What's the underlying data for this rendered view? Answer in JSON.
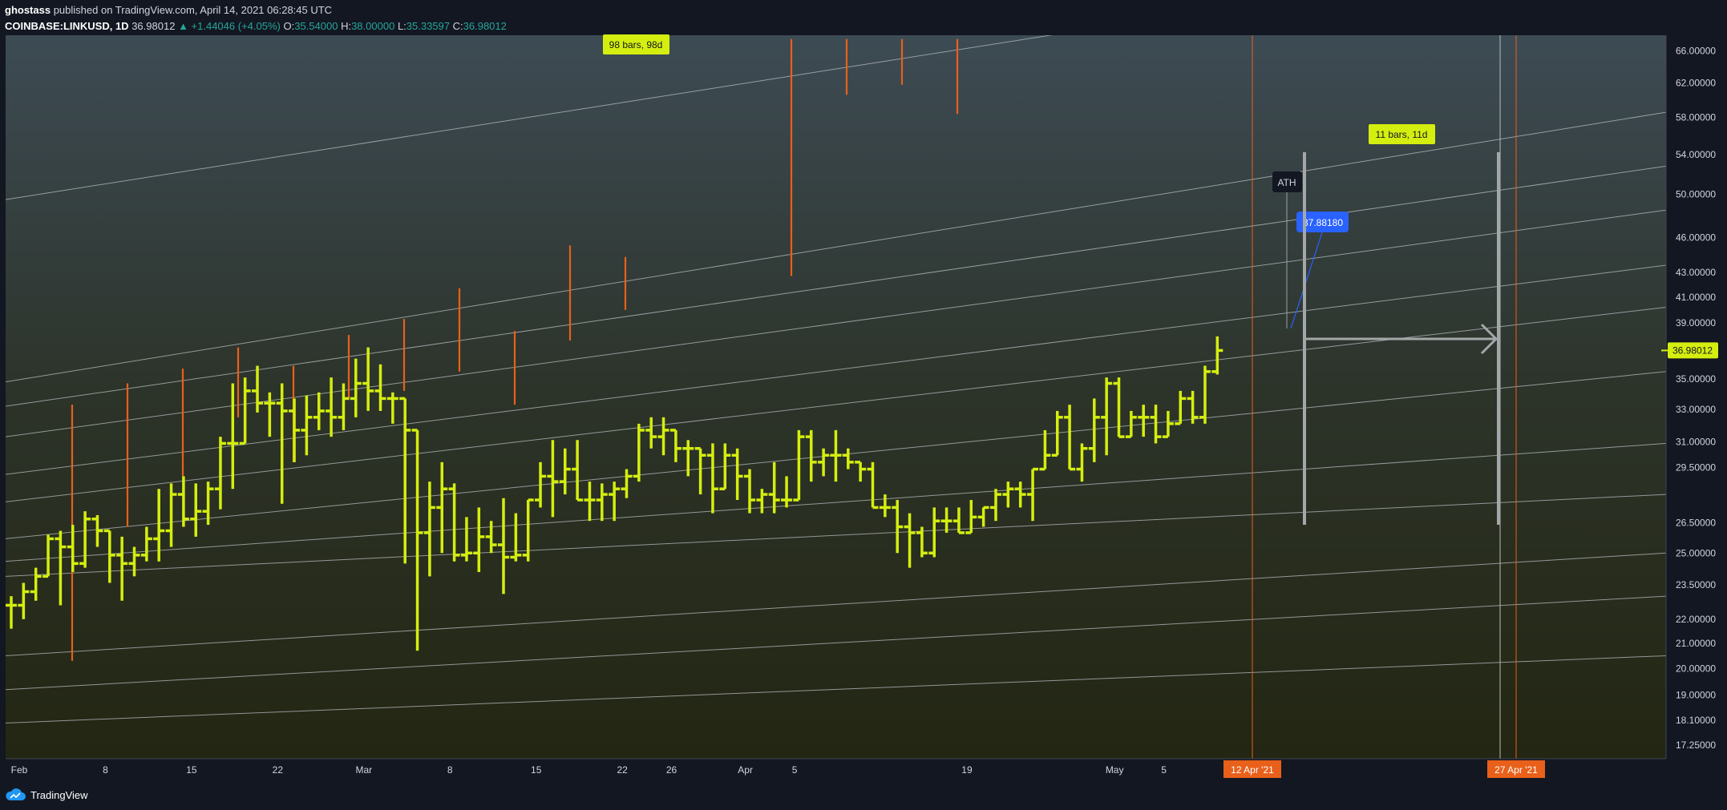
{
  "header": {
    "author": "ghostass",
    "published": "published on TradingView.com, April 14, 2021 06:28:45 UTC",
    "symbol": "COINBASE:LINKUSD, 1D",
    "last": "36.98012",
    "change": "▲ +1.44046 (+4.05%)",
    "open_label": "O:",
    "open": "35.54000",
    "high_label": "H:",
    "high": "38.00000",
    "low_label": "L:",
    "low": "35.33597",
    "close_label": "C:",
    "close": "36.98012"
  },
  "footer": {
    "brand": "TradingView",
    "icon": "tradingview-cloud-icon"
  },
  "colors": {
    "background": "#131722",
    "bar": "#d4ee0f",
    "orange": "#e8601a",
    "callout_blue": "#2962ff",
    "price_tag": "#d4ee0f"
  },
  "chart_data": {
    "type": "ohlc",
    "scale": "log",
    "ylim": [
      16.8,
      68
    ],
    "y_ticks": [
      "66.00000",
      "62.00000",
      "58.00000",
      "54.00000",
      "50.00000",
      "46.00000",
      "43.00000",
      "41.00000",
      "39.00000",
      "35.00000",
      "33.00000",
      "31.00000",
      "29.50000",
      "26.50000",
      "25.00000",
      "23.50000",
      "22.00000",
      "21.00000",
      "20.00000",
      "19.00000",
      "18.10000",
      "17.25000"
    ],
    "x_ticks": [
      {
        "label": "Feb",
        "day": 0
      },
      {
        "label": "8",
        "day": 7
      },
      {
        "label": "15",
        "day": 14
      },
      {
        "label": "22",
        "day": 21
      },
      {
        "label": "Mar",
        "day": 28
      },
      {
        "label": "8",
        "day": 35
      },
      {
        "label": "15",
        "day": 42
      },
      {
        "label": "22",
        "day": 49
      },
      {
        "label": "26",
        "day": 53
      },
      {
        "label": "Apr",
        "day": 59
      },
      {
        "label": "5",
        "day": 63
      },
      {
        "label": "19",
        "day": 77
      },
      {
        "label": "May",
        "day": 89
      },
      {
        "label": "5",
        "day": 93
      }
    ],
    "x_highlight": [
      {
        "label": "12 Apr '21",
        "day": 70
      },
      {
        "label": "27 Apr '21",
        "day": 85
      }
    ],
    "current_price": "36.98012",
    "current_value": 36.98,
    "bars": [
      [
        22.6,
        23.0,
        21.6,
        22.6
      ],
      [
        22.6,
        23.6,
        22.0,
        23.2
      ],
      [
        23.2,
        24.3,
        22.8,
        23.9
      ],
      [
        23.9,
        25.9,
        23.9,
        25.7
      ],
      [
        25.7,
        26.1,
        22.6,
        25.3
      ],
      [
        25.3,
        26.4,
        24.1,
        24.5
      ],
      [
        24.5,
        27.1,
        24.3,
        26.7
      ],
      [
        26.7,
        26.9,
        25.3,
        26.1
      ],
      [
        26.1,
        25.6,
        23.6,
        24.9
      ],
      [
        24.9,
        25.8,
        22.8,
        24.5
      ],
      [
        24.5,
        25.3,
        23.9,
        24.9
      ],
      [
        24.9,
        26.3,
        24.6,
        25.7
      ],
      [
        25.7,
        28.3,
        24.6,
        26.1
      ],
      [
        26.1,
        28.6,
        25.3,
        28.0
      ],
      [
        28.0,
        29.0,
        26.3,
        26.7
      ],
      [
        26.7,
        28.6,
        25.8,
        27.1
      ],
      [
        27.1,
        28.7,
        26.4,
        28.3
      ],
      [
        28.3,
        31.3,
        27.2,
        30.9
      ],
      [
        30.9,
        34.7,
        28.3,
        30.9
      ],
      [
        30.9,
        35.1,
        31.3,
        34.2
      ],
      [
        34.2,
        35.9,
        32.8,
        33.4
      ],
      [
        33.4,
        34.1,
        31.3,
        33.4
      ],
      [
        33.4,
        34.7,
        27.5,
        32.9
      ],
      [
        32.9,
        33.7,
        29.8,
        31.7
      ],
      [
        31.7,
        33.9,
        30.2,
        32.5
      ],
      [
        32.5,
        34.1,
        31.7,
        32.9
      ],
      [
        32.9,
        35.1,
        31.3,
        32.5
      ],
      [
        32.5,
        34.7,
        31.7,
        33.7
      ],
      [
        33.7,
        36.4,
        32.5,
        34.7
      ],
      [
        34.7,
        37.2,
        32.9,
        34.2
      ],
      [
        34.2,
        36.0,
        32.9,
        33.7
      ],
      [
        33.7,
        34.1,
        32.1,
        33.7
      ],
      [
        33.7,
        33.3,
        24.5,
        31.7
      ],
      [
        31.7,
        31.7,
        20.7,
        26.0
      ],
      [
        26.0,
        28.7,
        23.9,
        27.3
      ],
      [
        27.3,
        29.8,
        25.0,
        28.3
      ],
      [
        28.3,
        28.6,
        24.6,
        24.9
      ],
      [
        24.9,
        26.8,
        24.6,
        25.0
      ],
      [
        25.0,
        27.3,
        24.1,
        25.8
      ],
      [
        25.8,
        26.6,
        25.0,
        25.4
      ],
      [
        25.4,
        27.8,
        23.1,
        24.8
      ],
      [
        24.8,
        27.0,
        24.6,
        24.9
      ],
      [
        24.9,
        27.3,
        24.6,
        27.7
      ],
      [
        27.7,
        29.8,
        27.3,
        29.0
      ],
      [
        29.0,
        31.1,
        26.8,
        28.7
      ],
      [
        28.7,
        30.6,
        28.0,
        29.4
      ],
      [
        29.4,
        31.1,
        27.7,
        27.7
      ],
      [
        27.7,
        28.7,
        26.6,
        27.7
      ],
      [
        27.7,
        28.6,
        26.6,
        28.0
      ],
      [
        28.0,
        28.7,
        26.6,
        28.3
      ],
      [
        28.3,
        29.4,
        27.8,
        29.0
      ],
      [
        29.0,
        32.1,
        28.7,
        31.7
      ],
      [
        31.7,
        32.5,
        30.6,
        31.3
      ],
      [
        31.3,
        32.5,
        30.2,
        31.7
      ],
      [
        31.7,
        31.3,
        29.8,
        30.6
      ],
      [
        30.6,
        31.1,
        29.0,
        30.6
      ],
      [
        30.6,
        30.6,
        28.0,
        30.2
      ],
      [
        30.2,
        30.9,
        27.0,
        28.3
      ],
      [
        28.3,
        30.9,
        28.7,
        30.2
      ],
      [
        30.2,
        30.6,
        27.7,
        29.0
      ],
      [
        29.0,
        29.4,
        27.0,
        27.7
      ],
      [
        27.7,
        28.3,
        27.0,
        28.0
      ],
      [
        28.0,
        29.8,
        27.0,
        27.7
      ],
      [
        27.7,
        29.0,
        27.3,
        27.7
      ],
      [
        27.7,
        31.7,
        28.0,
        31.3
      ],
      [
        31.3,
        31.7,
        28.7,
        29.8
      ],
      [
        29.8,
        30.6,
        29.0,
        30.2
      ],
      [
        30.2,
        31.7,
        28.7,
        30.2
      ],
      [
        30.2,
        30.6,
        29.4,
        29.8
      ],
      [
        29.8,
        29.8,
        28.7,
        29.4
      ],
      [
        29.4,
        29.8,
        28.0,
        27.3
      ],
      [
        27.3,
        28.0,
        26.8,
        27.3
      ],
      [
        27.3,
        27.7,
        25.0,
        26.3
      ],
      [
        26.3,
        27.0,
        24.3,
        26.0
      ],
      [
        26.0,
        26.3,
        24.8,
        25.0
      ],
      [
        25.0,
        27.3,
        24.8,
        26.6
      ],
      [
        26.6,
        27.3,
        26.0,
        26.6
      ],
      [
        26.6,
        27.3,
        26.3,
        26.0
      ],
      [
        26.0,
        27.7,
        26.3,
        26.8
      ],
      [
        26.8,
        27.3,
        26.3,
        27.3
      ],
      [
        27.3,
        28.3,
        26.6,
        28.0
      ],
      [
        28.0,
        28.7,
        27.3,
        28.3
      ],
      [
        28.3,
        28.7,
        27.3,
        28.0
      ],
      [
        28.0,
        29.4,
        26.6,
        29.4
      ],
      [
        29.4,
        31.7,
        29.4,
        30.2
      ],
      [
        30.2,
        32.9,
        30.2,
        32.5
      ],
      [
        32.5,
        33.3,
        29.4,
        29.4
      ],
      [
        29.4,
        30.9,
        28.7,
        30.6
      ],
      [
        30.6,
        33.7,
        29.8,
        32.5
      ],
      [
        32.5,
        35.1,
        30.2,
        34.7
      ],
      [
        34.7,
        35.1,
        31.3,
        31.3
      ],
      [
        31.3,
        32.9,
        31.3,
        32.5
      ],
      [
        32.5,
        33.3,
        31.3,
        32.5
      ],
      [
        32.5,
        33.3,
        30.9,
        31.3
      ],
      [
        31.3,
        32.9,
        31.3,
        32.1
      ],
      [
        32.1,
        34.2,
        32.1,
        33.7
      ],
      [
        33.7,
        34.2,
        32.1,
        32.5
      ],
      [
        32.5,
        35.9,
        32.1,
        35.5
      ],
      [
        35.5,
        38.0,
        35.3,
        36.98
      ]
    ],
    "orange_ticks": [
      {
        "day": 8,
        "lo": 20.3,
        "hi": 33.3
      },
      {
        "day": 18,
        "lo": 26.3,
        "hi": 34.7
      },
      {
        "day": 28,
        "lo": 29.0,
        "hi": 35.7
      },
      {
        "day": 38,
        "lo": 32.5,
        "hi": 37.2
      },
      {
        "day": 48,
        "lo": 29.8,
        "hi": 35.9
      },
      {
        "day": 58,
        "lo": 33.7,
        "hi": 38.1
      },
      {
        "day": 68,
        "lo": 34.2,
        "hi": 39.3
      },
      {
        "day": 78,
        "lo": 35.5,
        "hi": 41.7
      },
      {
        "day": 88,
        "lo": 33.3,
        "hi": 38.4
      },
      {
        "day": 98,
        "lo": 37.7,
        "hi": 45.3
      },
      {
        "day": 108,
        "lo": 40.0,
        "hi": 44.3
      },
      {
        "day": 138,
        "lo": 42.7,
        "hi": 67.5
      },
      {
        "day": 148,
        "lo": 60.6,
        "hi": 67.5
      },
      {
        "day": 158,
        "lo": 61.8,
        "hi": 67.5
      },
      {
        "day": 168,
        "lo": 58.4,
        "hi": 67.5
      }
    ],
    "channel_lines": [
      {
        "y0": 49.5,
        "y1": 82.0
      },
      {
        "y0": 34.8,
        "y1": 58.6
      },
      {
        "y0": 33.2,
        "y1": 52.8
      },
      {
        "y0": 31.3,
        "y1": 48.5
      },
      {
        "y0": 29.1,
        "y1": 43.6
      },
      {
        "y0": 27.6,
        "y1": 40.2
      },
      {
        "y0": 25.7,
        "y1": 35.5
      },
      {
        "y0": 24.6,
        "y1": 30.9
      },
      {
        "y0": 23.9,
        "y1": 28.0
      },
      {
        "y0": 20.5,
        "y1": 25.0
      },
      {
        "y0": 19.2,
        "y1": 23.0
      },
      {
        "y0": 18.0,
        "y1": 20.5
      }
    ],
    "annotations": {
      "range_label_1": "98 bars, 98d",
      "range_label_2": "11 bars, 11d",
      "ath_label": "ATH",
      "callout_value": "37.88180"
    }
  }
}
